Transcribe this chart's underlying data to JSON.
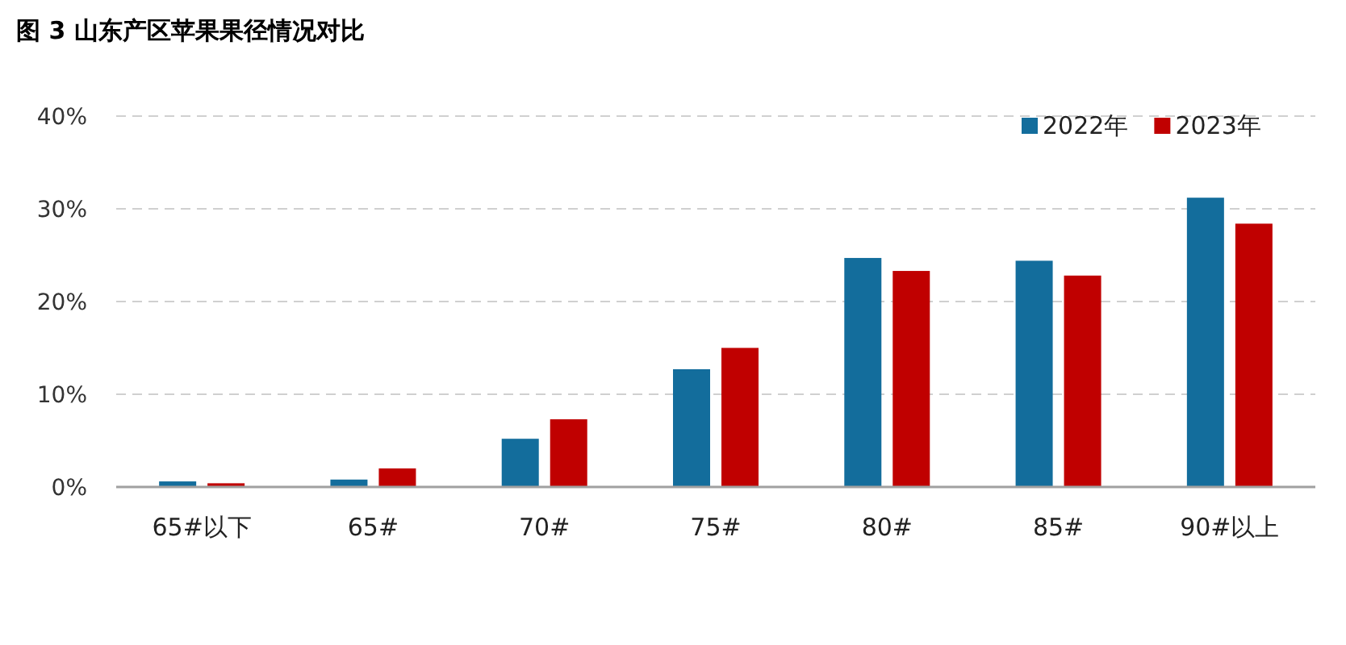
{
  "chart_data": {
    "type": "bar",
    "title": "图 3 山东产区苹果果径情况对比",
    "categories": [
      "65#以下",
      "65#",
      "70#",
      "75#",
      "80#",
      "85#",
      "90#以上"
    ],
    "series": [
      {
        "name": "2022年",
        "color": "#136d9c",
        "values": [
          0.6,
          0.8,
          5.2,
          12.7,
          24.7,
          24.4,
          31.2
        ]
      },
      {
        "name": "2023年",
        "color": "#c00000",
        "values": [
          0.4,
          2.0,
          7.3,
          15.0,
          23.3,
          22.8,
          28.4
        ]
      }
    ],
    "ylim": [
      0,
      40
    ],
    "yticks": [
      {
        "value": 0,
        "label": "0%"
      },
      {
        "value": 10,
        "label": "10%"
      },
      {
        "value": 20,
        "label": "20%"
      },
      {
        "value": 30,
        "label": "30%"
      },
      {
        "value": 40,
        "label": "40%"
      }
    ],
    "grid": "y",
    "legend": "top right"
  }
}
